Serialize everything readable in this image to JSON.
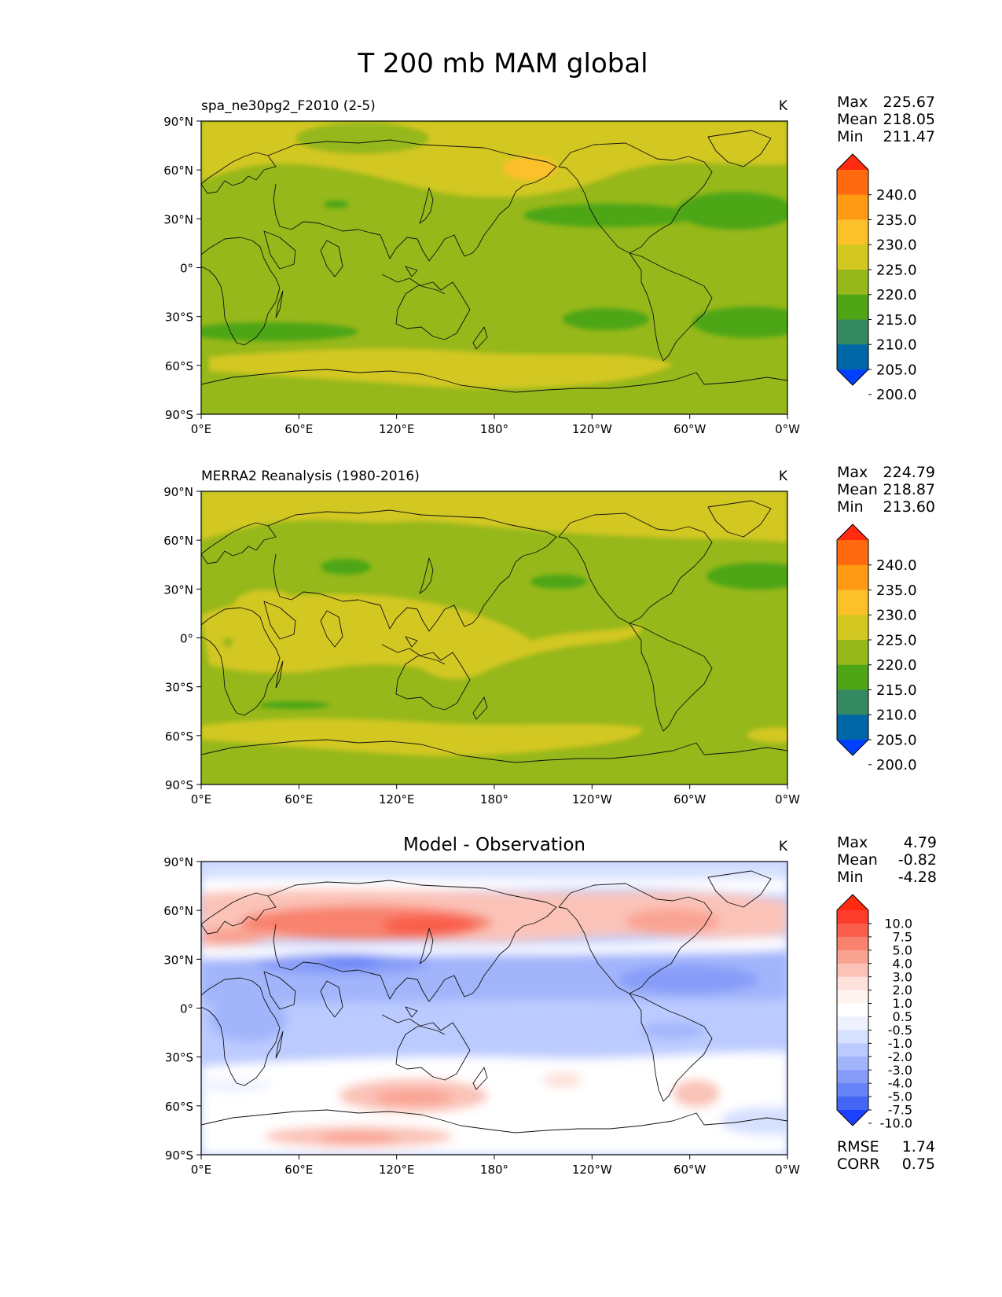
{
  "title": "T 200 mb MAM global",
  "units": "K",
  "x_ticks": [
    "0°E",
    "60°E",
    "120°E",
    "180°",
    "120°W",
    "60°W",
    "0°W"
  ],
  "y_ticks": [
    "90°N",
    "60°N",
    "30°N",
    "0°",
    "30°S",
    "60°S",
    "90°S"
  ],
  "panels": [
    {
      "title": "spa_ne30pg2_F2010 (2-5)",
      "units": "K",
      "stats": [
        {
          "label": "Max",
          "value": "225.67"
        },
        {
          "label": "Mean",
          "value": "218.05"
        },
        {
          "label": "Min",
          "value": "211.47"
        }
      ]
    },
    {
      "title": "MERRA2 Reanalysis (1980-2016)",
      "units": "K",
      "stats": [
        {
          "label": "Max",
          "value": "224.79"
        },
        {
          "label": "Mean",
          "value": "218.87"
        },
        {
          "label": "Min",
          "value": "213.60"
        }
      ]
    },
    {
      "title": "Model - Observation",
      "units": "K",
      "stats": [
        {
          "label": "Max",
          "value": "4.79"
        },
        {
          "label": "Mean",
          "value": "-0.82"
        },
        {
          "label": "Min",
          "value": "-4.28"
        }
      ],
      "extra_stats": [
        {
          "label": "RMSE",
          "value": "1.74"
        },
        {
          "label": "CORR",
          "value": "0.75"
        }
      ]
    }
  ],
  "colorbar_field": {
    "labels": [
      "240.0",
      "235.0",
      "230.0",
      "225.0",
      "220.0",
      "215.0",
      "210.0",
      "205.0",
      "200.0"
    ],
    "colors": [
      "#ff2a10",
      "#ff6a10",
      "#ff9a15",
      "#fbc02a",
      "#d3c722",
      "#96b81a",
      "#4ea617",
      "#348962",
      "#0067a7",
      "#0040ff"
    ]
  },
  "colorbar_diff": {
    "labels": [
      "10.0",
      "7.5",
      "5.0",
      "4.0",
      "3.0",
      "2.0",
      "1.0",
      "0.5",
      "-0.5",
      "-1.0",
      "-2.0",
      "-3.0",
      "-4.0",
      "-5.0",
      "-7.5",
      "-10.0"
    ],
    "colors": [
      "#ff2a10",
      "#fe3c2c",
      "#f95f4c",
      "#f8826d",
      "#f9a393",
      "#fbc3b8",
      "#fde1da",
      "#fff3f0",
      "#ffffff",
      "#eef2ff",
      "#d6e0ff",
      "#bccbff",
      "#a2b5fb",
      "#869cf8",
      "#6683f7",
      "#4466f6",
      "#1b40ff"
    ]
  },
  "field_colors": {
    "ocean_base": "#96b81a",
    "warm_band": "#d3c722",
    "cool_band": "#4ea617",
    "hot_spot": "#fbc02a"
  }
}
